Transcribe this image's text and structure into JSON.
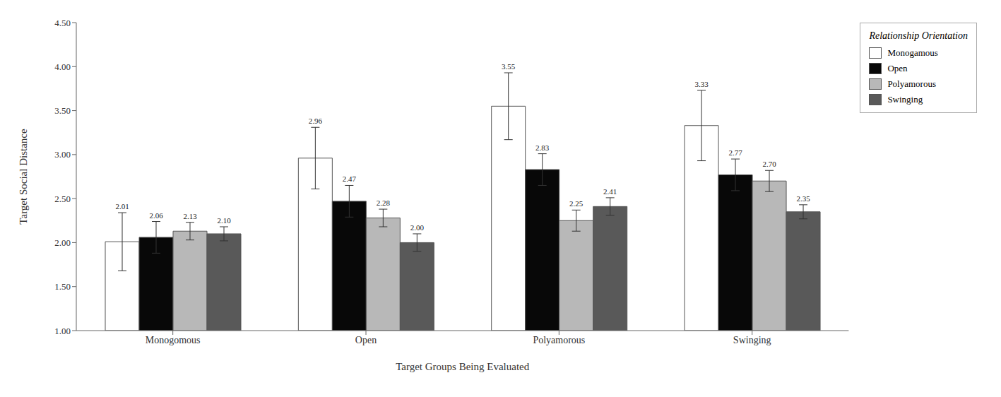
{
  "chart_data": {
    "type": "bar",
    "xlabel": "Target Groups Being Evaluated",
    "ylabel": "Target Social Distance",
    "legend_title": "Relationship Orientation",
    "categories": [
      "Monogomous",
      "Open",
      "Polyamorous",
      "Swinging"
    ],
    "series": [
      {
        "name": "Monogamous",
        "color": "#ffffff",
        "values": [
          2.01,
          2.96,
          3.55,
          3.33
        ],
        "value_labels": [
          "2.01",
          "2.96",
          "3.55",
          "3.33"
        ],
        "errors": [
          0.33,
          0.35,
          0.38,
          0.4
        ]
      },
      {
        "name": "Open",
        "color": "#080808",
        "values": [
          2.06,
          2.47,
          2.83,
          2.77
        ],
        "value_labels": [
          "2.06",
          "2.47",
          "2.83",
          "2.77"
        ],
        "errors": [
          0.18,
          0.18,
          0.18,
          0.18
        ]
      },
      {
        "name": "Polyamorous",
        "color": "#b8b8b8",
        "values": [
          2.13,
          2.28,
          2.25,
          2.7
        ],
        "value_labels": [
          "2.13",
          "2.28",
          "2.25",
          "2.70"
        ],
        "errors": [
          0.1,
          0.1,
          0.12,
          0.12
        ]
      },
      {
        "name": "Swinging",
        "color": "#595959",
        "values": [
          2.1,
          2,
          2.41,
          2.35
        ],
        "value_labels": [
          "2.10",
          "2.00",
          "2.41",
          "2.35"
        ],
        "errors": [
          0.08,
          0.1,
          0.1,
          0.08
        ]
      }
    ],
    "ylim": [
      1,
      4.5
    ],
    "yticks": [
      {
        "value": 1,
        "label": "1.00"
      },
      {
        "value": 1.5,
        "label": "1.50"
      },
      {
        "value": 2,
        "label": "2.00"
      },
      {
        "value": 2.5,
        "label": "2.50"
      },
      {
        "value": 3,
        "label": "3.00"
      },
      {
        "value": 3.5,
        "label": "3.50"
      },
      {
        "value": 4,
        "label": "4.00"
      },
      {
        "value": 4.5,
        "label": "4.50"
      }
    ],
    "grid": false,
    "legend": "upper right",
    "data_labels": true
  }
}
